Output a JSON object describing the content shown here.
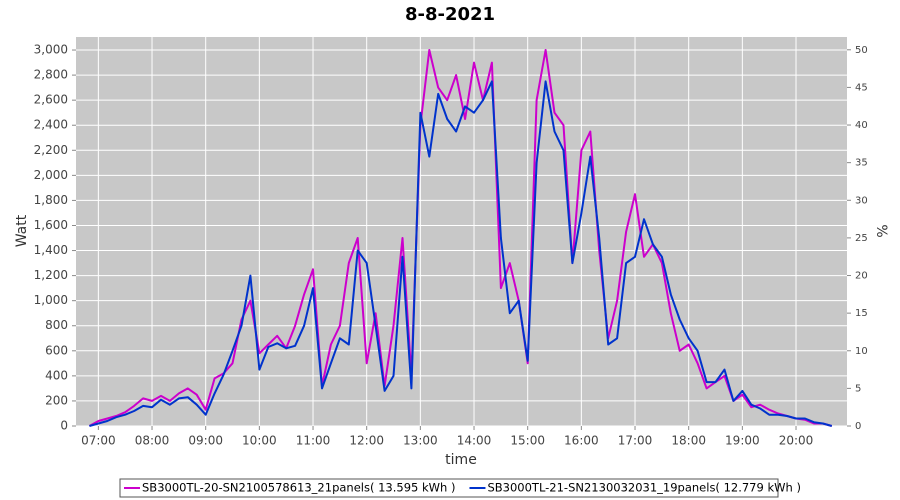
{
  "chart_data": {
    "type": "line",
    "title": "8-8-2021",
    "x_label": "time",
    "y_label": "Watt",
    "y2_label": "%",
    "x": [
      "06:50",
      "07:00",
      "07:10",
      "07:20",
      "07:30",
      "07:40",
      "07:50",
      "08:00",
      "08:10",
      "08:20",
      "08:30",
      "08:40",
      "08:50",
      "09:00",
      "09:10",
      "09:20",
      "09:30",
      "09:40",
      "09:50",
      "10:00",
      "10:10",
      "10:20",
      "10:30",
      "10:40",
      "10:50",
      "11:00",
      "11:10",
      "11:20",
      "11:30",
      "11:40",
      "11:50",
      "12:00",
      "12:10",
      "12:20",
      "12:30",
      "12:40",
      "12:50",
      "13:00",
      "13:10",
      "13:20",
      "13:30",
      "13:40",
      "13:50",
      "14:00",
      "14:10",
      "14:20",
      "14:30",
      "14:40",
      "14:50",
      "15:00",
      "15:10",
      "15:20",
      "15:30",
      "15:40",
      "15:50",
      "16:00",
      "16:10",
      "16:20",
      "16:30",
      "16:40",
      "16:50",
      "17:00",
      "17:10",
      "17:20",
      "17:30",
      "17:40",
      "17:50",
      "18:00",
      "18:10",
      "18:20",
      "18:30",
      "18:40",
      "18:50",
      "19:00",
      "19:10",
      "19:20",
      "19:30",
      "19:40",
      "19:50",
      "20:00",
      "20:10",
      "20:20",
      "20:30",
      "20:40"
    ],
    "series": [
      {
        "name": "SB3000TL-20-SN2100578613_21panels( 13.595 kWh )",
        "color": "#cc00cc",
        "values": [
          0,
          40,
          60,
          80,
          110,
          160,
          220,
          200,
          240,
          200,
          260,
          300,
          250,
          130,
          380,
          420,
          500,
          850,
          1000,
          580,
          650,
          720,
          620,
          800,
          1050,
          1250,
          320,
          650,
          800,
          1300,
          1500,
          500,
          900,
          320,
          800,
          1500,
          400,
          2400,
          3000,
          2700,
          2600,
          2800,
          2450,
          2900,
          2600,
          2900,
          1100,
          1300,
          1000,
          500,
          2600,
          3000,
          2500,
          2400,
          1300,
          2200,
          2350,
          1400,
          700,
          1000,
          1550,
          1850,
          1350,
          1450,
          1300,
          900,
          600,
          650,
          500,
          300,
          350,
          400,
          200,
          250,
          150,
          170,
          130,
          100,
          80,
          60,
          50,
          20,
          20,
          0
        ]
      },
      {
        "name": "SB3000TL-21-SN2130032031_19panels( 12.779 kWh )",
        "color": "#0033cc",
        "values": [
          0,
          20,
          40,
          70,
          90,
          120,
          160,
          150,
          210,
          170,
          220,
          230,
          170,
          90,
          260,
          410,
          600,
          800,
          1200,
          450,
          630,
          660,
          620,
          640,
          800,
          1100,
          300,
          500,
          700,
          650,
          1400,
          1300,
          800,
          280,
          400,
          1350,
          300,
          2500,
          2150,
          2650,
          2450,
          2350,
          2550,
          2500,
          2600,
          2750,
          1500,
          900,
          1000,
          520,
          2100,
          2750,
          2350,
          2200,
          1300,
          1700,
          2150,
          1500,
          650,
          700,
          1300,
          1350,
          1650,
          1450,
          1350,
          1050,
          850,
          700,
          600,
          350,
          350,
          450,
          200,
          280,
          170,
          140,
          90,
          90,
          80,
          60,
          60,
          30,
          20,
          0
        ]
      }
    ],
    "xlim": [
      "06:35",
      "20:57"
    ],
    "xticks": [
      "07:00",
      "08:00",
      "09:00",
      "10:00",
      "11:00",
      "12:00",
      "13:00",
      "14:00",
      "15:00",
      "16:00",
      "17:00",
      "18:00",
      "19:00",
      "20:00"
    ],
    "ylim": [
      0,
      3104
    ],
    "yticks": [
      0,
      200,
      400,
      600,
      800,
      {
        "value": 1000,
        "label": "1,000"
      },
      {
        "value": 1200,
        "label": "1,200"
      },
      {
        "value": 1400,
        "label": "1,400"
      },
      {
        "value": 1600,
        "label": "1,600"
      },
      {
        "value": 1800,
        "label": "1,800"
      },
      {
        "value": 2000,
        "label": "2,000"
      },
      {
        "value": 2200,
        "label": "2,200"
      },
      {
        "value": 2400,
        "label": "2,400"
      },
      {
        "value": 2600,
        "label": "2,600"
      },
      {
        "value": 2800,
        "label": "2,800"
      },
      {
        "value": 3000,
        "label": "3,000"
      }
    ],
    "y2lim": [
      0,
      51.7
    ],
    "y2ticks": [
      0,
      5,
      10,
      15,
      20,
      25,
      30,
      35,
      40,
      45,
      50
    ],
    "grid": true
  }
}
